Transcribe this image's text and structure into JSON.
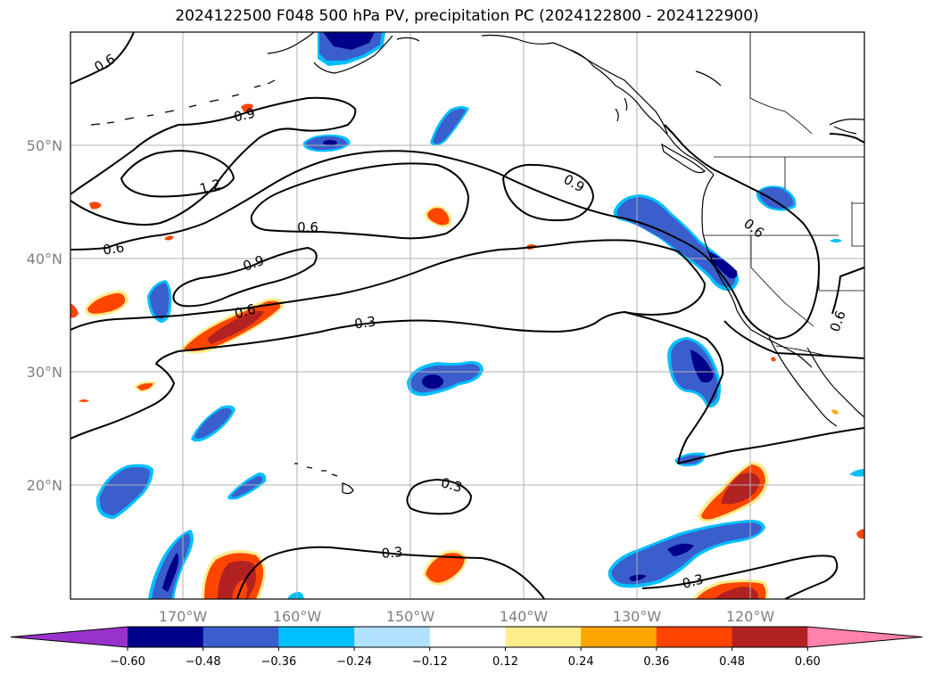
{
  "title": "2024122500 F048 500 hPa PV, precipitation PC (2024122800 - 2024122900)",
  "latitude_labels": [
    "50°N",
    "40°N",
    "30°N",
    "20°N"
  ],
  "longitude_labels": [
    "170°W",
    "160°W",
    "150°W",
    "140°W",
    "130°W",
    "120°W"
  ],
  "pv_contour_labels": [
    "0.6",
    "0.9",
    "1.2",
    "0.6",
    "0.6",
    "0.9",
    "0.6",
    "0.3",
    "0.9",
    "0.6",
    "0.6",
    "0.3",
    "0.3",
    "0.3"
  ],
  "colorbar": {
    "tick_labels": [
      "−0.60",
      "−0.48",
      "−0.36",
      "−0.24",
      "−0.12",
      "0.12",
      "0.24",
      "0.36",
      "0.48",
      "0.60"
    ],
    "colors": [
      "#9932cc",
      "#00008b",
      "#3a5fcd",
      "#00bfff",
      "#b0e2ff",
      "#ffffff",
      "#ffec8b",
      "#ffa500",
      "#ff4500",
      "#b22222",
      "#ff82ab"
    ]
  },
  "colors": {
    "contour": "#000000",
    "coastline": "#000000",
    "grid": "#b0b0b0"
  }
}
